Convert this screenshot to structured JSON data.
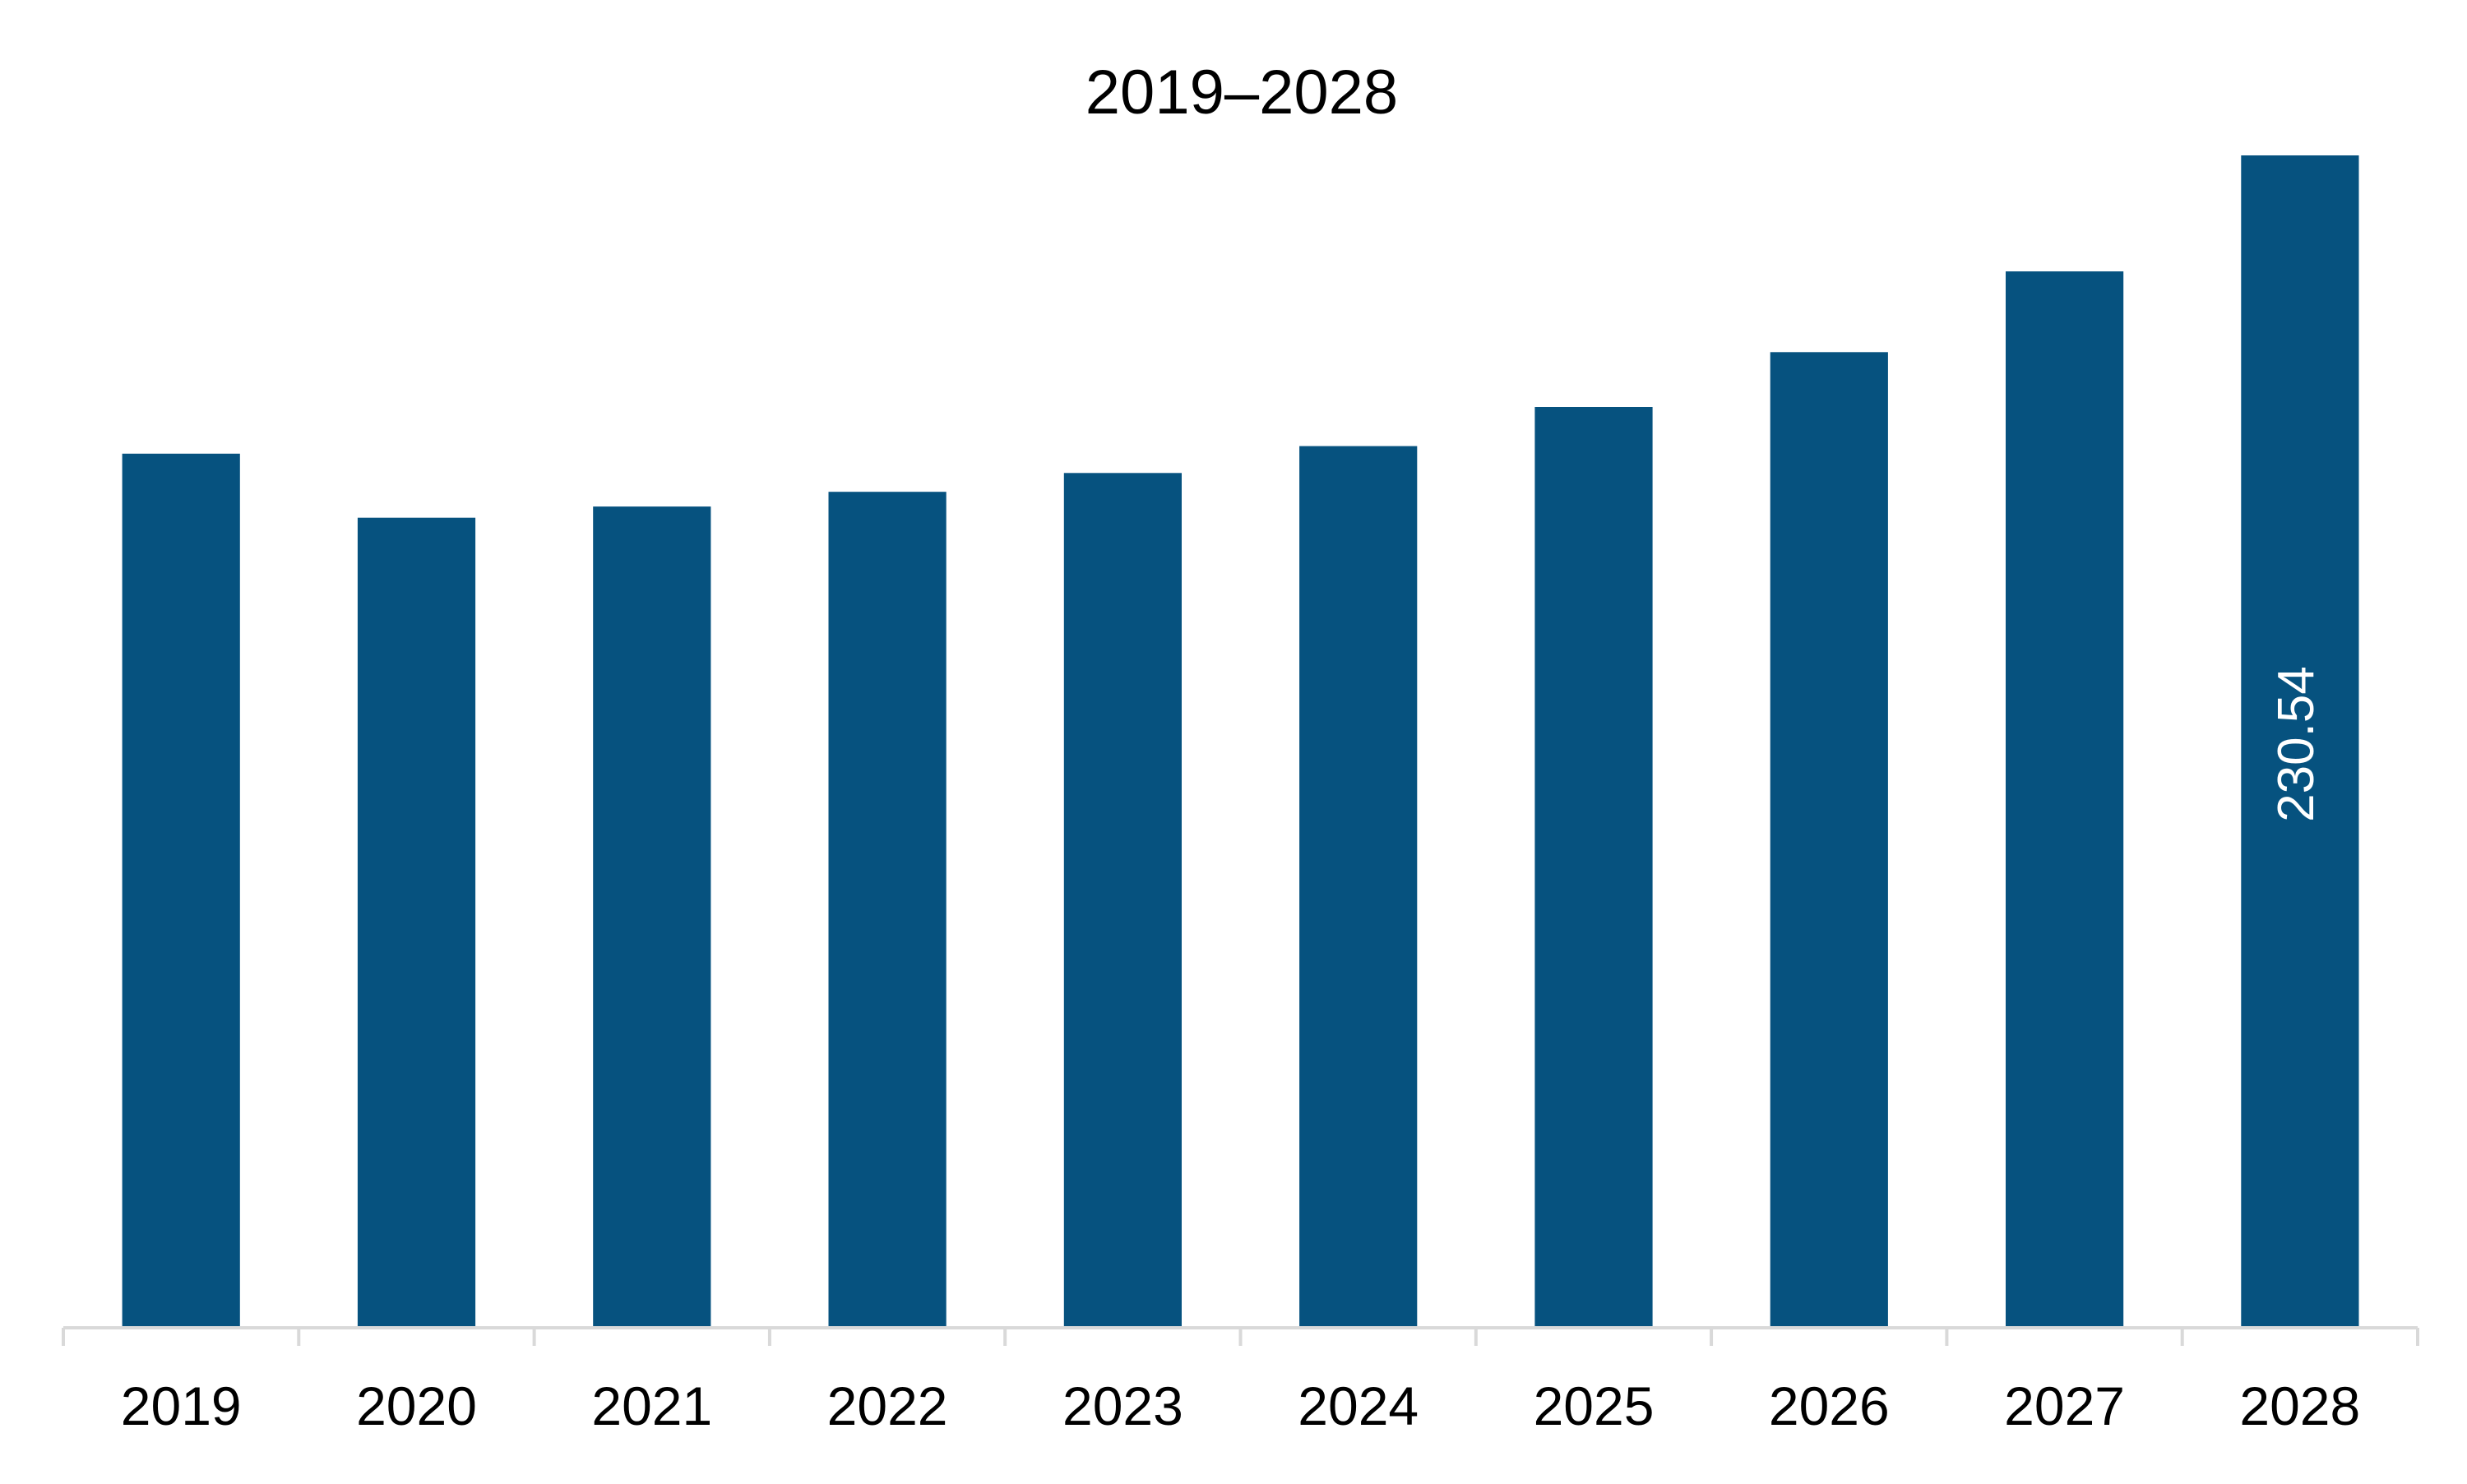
{
  "chart_data": {
    "type": "bar",
    "title": "2019–2028",
    "categories": [
      "2019",
      "2020",
      "2021",
      "2022",
      "2023",
      "2024",
      "2025",
      "2026",
      "2027",
      "2028"
    ],
    "values": [
      171.8,
      159.2,
      161.4,
      164.3,
      168.0,
      173.3,
      181.0,
      191.8,
      207.7,
      230.54
    ],
    "data_labels": [
      {
        "index": 9,
        "text": "230.54"
      }
    ],
    "bar_color": "#06527F",
    "axis_color": "#D9D9D9",
    "ylim": [
      0,
      230.54
    ],
    "grid": false,
    "legend": "none"
  }
}
